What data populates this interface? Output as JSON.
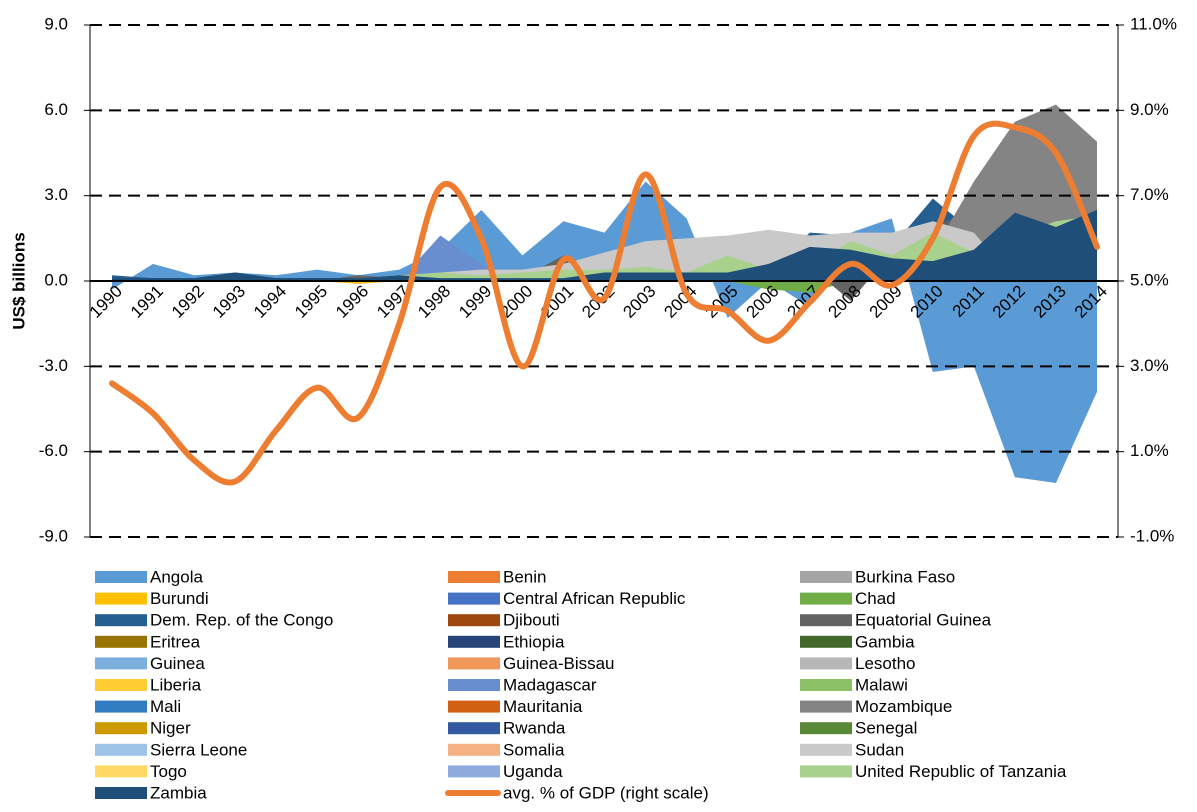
{
  "chart_data": {
    "type": "area",
    "y_label": "US$ billions",
    "categories": [
      "1990",
      "1991",
      "1992",
      "1993",
      "1994",
      "1995",
      "1996",
      "1997",
      "1998",
      "1999",
      "2000",
      "2001",
      "2002",
      "2003",
      "2004",
      "2005",
      "2006",
      "2007",
      "2008",
      "2009",
      "2010",
      "2011",
      "2012",
      "2013",
      "2014"
    ],
    "ylim": [
      -9,
      9
    ],
    "yticks": [
      {
        "value": -9,
        "label": "-9.0"
      },
      {
        "value": -6,
        "label": "-6.0"
      },
      {
        "value": -3,
        "label": "-3.0"
      },
      {
        "value": 0,
        "label": "0.0"
      },
      {
        "value": 3,
        "label": "3.0"
      },
      {
        "value": 6,
        "label": "6.0"
      },
      {
        "value": 9,
        "label": "9.0"
      }
    ],
    "y2lim": [
      -1,
      11
    ],
    "y2ticks": [
      {
        "value": -1,
        "label": "-1.0%"
      },
      {
        "value": 1,
        "label": "1.0%"
      },
      {
        "value": 3,
        "label": "3.0%"
      },
      {
        "value": 5,
        "label": "5.0%"
      },
      {
        "value": 7,
        "label": "7.0%"
      },
      {
        "value": 9,
        "label": "9.0%"
      },
      {
        "value": 11,
        "label": "11.0%"
      }
    ],
    "grid": true,
    "series": [
      {
        "name": "Angola",
        "color": "#5b9bd5",
        "values": [
          -0.3,
          0.6,
          0.2,
          0.3,
          0.2,
          0.4,
          0.2,
          0.4,
          1.1,
          2.5,
          0.9,
          2.1,
          1.7,
          3.5,
          2.2,
          -1.3,
          0,
          -0.9,
          1.7,
          2.2,
          -3.2,
          -3.0,
          -6.9,
          -7.1,
          -3.9
        ]
      },
      {
        "name": "Benin",
        "color": "#ed7d31",
        "values": [
          0,
          0,
          0,
          0,
          0,
          0,
          0,
          0,
          0,
          0,
          0,
          0,
          0,
          0,
          0,
          0,
          0,
          0,
          0,
          0,
          0,
          0,
          0,
          0,
          0
        ]
      },
      {
        "name": "Burkina Faso",
        "color": "#a5a5a5",
        "values": [
          0,
          0,
          0,
          0,
          0,
          0,
          0,
          0,
          0,
          0,
          0,
          0,
          0,
          0,
          0,
          0,
          0,
          0,
          0,
          0.2,
          0.3,
          0.4,
          0,
          0,
          0
        ]
      },
      {
        "name": "Burundi",
        "color": "#ffc000",
        "values": [
          0,
          0,
          0,
          0,
          0,
          0,
          -0.1,
          0,
          0,
          0,
          0,
          0,
          0,
          0,
          0,
          0,
          0,
          0,
          0,
          0,
          0,
          0,
          0,
          0,
          0
        ]
      },
      {
        "name": "Central African Republic",
        "color": "#4472c4",
        "values": [
          0,
          0,
          0,
          0,
          0,
          0,
          0,
          0,
          0,
          0,
          0,
          0,
          0,
          0,
          0,
          0,
          0,
          0,
          0,
          0,
          0,
          0,
          0,
          0,
          0
        ]
      },
      {
        "name": "Chad",
        "color": "#70ad47",
        "values": [
          0,
          0,
          0,
          0,
          0,
          0,
          0,
          0,
          0,
          0,
          0.1,
          0,
          0,
          0,
          0,
          0,
          -0.3,
          -0.4,
          0,
          0,
          0,
          0,
          0,
          0,
          0
        ]
      },
      {
        "name": "Dem. Rep. of the Congo",
        "color": "#255e91",
        "values": [
          0.2,
          0.1,
          0.1,
          0.2,
          0.1,
          0.1,
          0.1,
          0.1,
          0.1,
          0.1,
          0.1,
          0.1,
          0.1,
          0.2,
          0.3,
          0.3,
          0.3,
          1.7,
          1.6,
          1.2,
          2.9,
          1.7,
          2.5,
          2.0,
          2.4
        ]
      },
      {
        "name": "Djibouti",
        "color": "#9e480e",
        "values": [
          0,
          0,
          0,
          0,
          0,
          0,
          0,
          0,
          0,
          0,
          0,
          0,
          0,
          0,
          0,
          0,
          0,
          0,
          0,
          0,
          0,
          0,
          0,
          0,
          0
        ]
      },
      {
        "name": "Equatorial Guinea",
        "color": "#636363",
        "values": [
          0,
          0,
          0,
          0,
          0,
          0,
          0.2,
          0.1,
          0.1,
          0.3,
          0.1,
          0.9,
          0.3,
          0.4,
          0.4,
          0.3,
          0.4,
          0.5,
          -0.7,
          1.0,
          1.9,
          2.5,
          1.5,
          1.5,
          1.5
        ]
      },
      {
        "name": "Eritrea",
        "color": "#997300",
        "values": [
          0,
          0,
          0,
          0,
          0,
          0,
          0,
          0,
          0,
          0,
          0,
          0,
          0,
          0,
          0,
          0,
          0,
          0,
          0,
          0,
          0,
          0,
          0,
          0,
          0
        ]
      },
      {
        "name": "Ethiopia",
        "color": "#264478",
        "values": [
          0,
          0,
          0,
          0,
          0,
          0,
          0,
          0,
          0,
          0,
          0,
          0,
          0,
          0,
          0.1,
          0.1,
          0.2,
          0.2,
          0.1,
          0.2,
          0.3,
          0.6,
          0.3,
          0.9,
          1.2
        ]
      },
      {
        "name": "Gambia",
        "color": "#43682b",
        "values": [
          0,
          0,
          0,
          0,
          0,
          0,
          0,
          0,
          0,
          0,
          0,
          0,
          0,
          0,
          0,
          0,
          0,
          0,
          0,
          0,
          0,
          0,
          0,
          0,
          0
        ]
      },
      {
        "name": "Guinea",
        "color": "#7cafdd",
        "values": [
          0,
          0,
          0,
          0,
          0,
          0,
          0,
          0,
          0,
          0,
          0,
          0,
          0,
          0,
          0,
          0,
          0,
          0.4,
          0,
          0,
          0,
          0,
          0,
          0,
          0
        ]
      },
      {
        "name": "Guinea-Bissau",
        "color": "#f1975a",
        "values": [
          0,
          0,
          0,
          0,
          0,
          0,
          0,
          0,
          0,
          0,
          0,
          0,
          0,
          0,
          0,
          0,
          0,
          0,
          0,
          0,
          0,
          0,
          0,
          0,
          0
        ]
      },
      {
        "name": "Lesotho",
        "color": "#b7b7b7",
        "values": [
          0,
          0,
          0,
          0,
          0,
          0,
          0,
          0,
          0,
          0,
          0,
          0,
          0,
          0,
          0,
          0,
          0,
          0,
          0,
          0,
          0,
          0,
          0,
          0,
          0
        ]
      },
      {
        "name": "Liberia",
        "color": "#ffcd33",
        "values": [
          0,
          0,
          0,
          0,
          0,
          0,
          0,
          0,
          0,
          0,
          0,
          0,
          0,
          0,
          0,
          0,
          0,
          0,
          0,
          0,
          0,
          0,
          0,
          0,
          0
        ]
      },
      {
        "name": "Madagascar",
        "color": "#698ed0",
        "values": [
          0,
          0,
          0,
          0,
          0,
          0,
          0,
          0,
          1.6,
          0.6,
          0,
          0,
          0,
          0,
          0,
          0,
          0,
          0,
          0,
          0,
          0,
          0,
          0,
          0,
          0
        ]
      },
      {
        "name": "Malawi",
        "color": "#8cc168",
        "values": [
          0,
          0,
          0,
          0,
          0,
          0,
          0,
          0,
          0,
          0,
          0,
          0,
          0,
          0,
          0,
          0,
          0,
          0,
          0,
          0,
          0,
          0,
          0,
          0,
          0
        ]
      },
      {
        "name": "Mali",
        "color": "#327dc2",
        "values": [
          0,
          0,
          0,
          0,
          0,
          0,
          0,
          0,
          0,
          0,
          0,
          0,
          0,
          0,
          0,
          0,
          0,
          0,
          0,
          0,
          0,
          0,
          0,
          0,
          0
        ]
      },
      {
        "name": "Mauritania",
        "color": "#d26012",
        "values": [
          0,
          0,
          0,
          0,
          0,
          0,
          0,
          0,
          0,
          0,
          0,
          0,
          0,
          0,
          0,
          0,
          0,
          0,
          0,
          0,
          0,
          0,
          0,
          0,
          0
        ]
      },
      {
        "name": "Mozambique",
        "color": "#848484",
        "values": [
          0.1,
          0,
          0,
          0,
          0,
          0,
          0,
          0,
          0.2,
          0.4,
          0.1,
          0.2,
          0.3,
          0.3,
          0.2,
          0.1,
          0.2,
          0.4,
          0.6,
          0.9,
          1.0,
          3.5,
          5.6,
          6.2,
          4.9
        ]
      },
      {
        "name": "Niger",
        "color": "#cc9a00",
        "values": [
          0,
          0,
          0,
          0,
          0,
          0,
          0,
          0,
          0,
          0,
          0,
          0,
          0,
          0,
          0,
          0,
          0,
          0,
          0,
          0,
          0,
          0,
          0,
          0,
          0
        ]
      },
      {
        "name": "Rwanda",
        "color": "#335aa1",
        "values": [
          0,
          0,
          0,
          0,
          0,
          0,
          0,
          0,
          0,
          0,
          0,
          0,
          0,
          0,
          0,
          0,
          0,
          0,
          0,
          0,
          0,
          0,
          0,
          0,
          0
        ]
      },
      {
        "name": "Senegal",
        "color": "#5a8a39",
        "values": [
          0,
          0,
          0,
          0,
          0,
          0,
          0,
          0,
          0,
          0,
          0,
          0,
          0,
          0,
          0,
          0,
          0,
          0,
          0,
          0,
          0,
          0,
          0,
          0,
          0
        ]
      },
      {
        "name": "Sierra Leone",
        "color": "#9dc3e6",
        "values": [
          0,
          0,
          0,
          0,
          0,
          0,
          0,
          0,
          0,
          0,
          0,
          0,
          0,
          0,
          0,
          0,
          0,
          0,
          0,
          0,
          0,
          0,
          0,
          0,
          0
        ]
      },
      {
        "name": "Somalia",
        "color": "#f4b183",
        "values": [
          0,
          0,
          0,
          0,
          0,
          0,
          0,
          0,
          0,
          0,
          0,
          0,
          0,
          0,
          0,
          0,
          0,
          0,
          0,
          0,
          0,
          0,
          0,
          0,
          0
        ]
      },
      {
        "name": "Sudan",
        "color": "#c9c9c9",
        "values": [
          0,
          0,
          0,
          0,
          0,
          0,
          0,
          0,
          0.3,
          0.4,
          0.4,
          0.6,
          1.0,
          1.4,
          1.5,
          1.6,
          1.8,
          1.6,
          1.7,
          1.7,
          2.1,
          1.7,
          0,
          0,
          0
        ]
      },
      {
        "name": "Togo",
        "color": "#ffd966",
        "values": [
          0,
          0,
          0,
          0,
          0,
          0,
          0,
          0,
          0,
          0,
          0,
          0,
          0,
          0,
          0,
          0,
          0,
          0,
          0,
          0,
          0,
          0,
          0,
          0,
          0
        ]
      },
      {
        "name": "Uganda",
        "color": "#8faadc",
        "values": [
          0,
          0,
          0,
          0,
          0,
          0,
          0,
          0,
          0,
          0,
          0,
          0,
          0,
          0,
          0,
          0,
          0,
          0,
          0,
          0,
          0,
          0,
          0,
          0,
          0
        ]
      },
      {
        "name": "United Republic of Tanzania",
        "color": "#a9d18e",
        "values": [
          0,
          0,
          0,
          0,
          0,
          0,
          0.1,
          0.2,
          0.3,
          0.2,
          0.3,
          0.4,
          0.4,
          0.5,
          0.3,
          0.9,
          0.4,
          0.5,
          1.4,
          0.9,
          1.7,
          1.0,
          1.6,
          2.1,
          2.3
        ]
      },
      {
        "name": "Zambia",
        "color": "#1f4e79",
        "values": [
          0.1,
          0.1,
          0.1,
          0.3,
          0.1,
          0.1,
          0.1,
          0.2,
          0.1,
          0.1,
          0.1,
          0.1,
          0.3,
          0.3,
          0.3,
          0.3,
          0.6,
          1.2,
          1.1,
          0.8,
          0.7,
          1.1,
          2.4,
          1.9,
          2.5
        ]
      },
      {
        "name": "avg. % of GDP (right scale)",
        "color": "#ed7d31",
        "type": "line",
        "axis": "y2",
        "values": [
          2.6,
          1.9,
          0.8,
          0.3,
          1.5,
          2.5,
          1.8,
          4.0,
          7.2,
          6.0,
          3.0,
          5.5,
          4.6,
          7.5,
          4.7,
          4.3,
          3.6,
          4.5,
          5.4,
          4.9,
          6.0,
          8.4,
          8.6,
          8.0,
          5.8
        ]
      }
    ]
  }
}
